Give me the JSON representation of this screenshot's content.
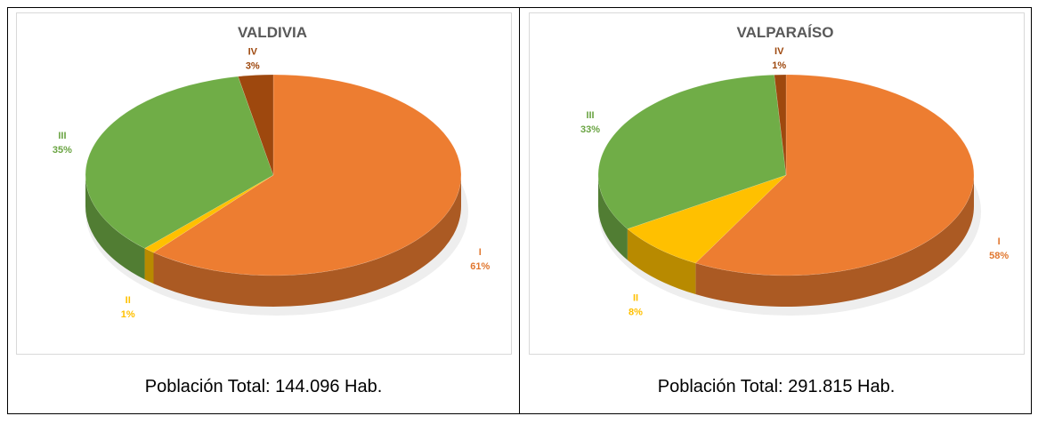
{
  "chart_data": [
    {
      "type": "pie",
      "title": "VALDIVIA",
      "categories": [
        "I",
        "II",
        "III",
        "IV"
      ],
      "values": [
        61,
        1,
        35,
        3
      ],
      "value_labels": [
        "61%",
        "1%",
        "35%",
        "3%"
      ],
      "colors": [
        "#ED7D31",
        "#FFC000",
        "#70AD47",
        "#9E480E"
      ],
      "caption": "Población Total: 144.096 Hab."
    },
    {
      "type": "pie",
      "title": "VALPARAÍSO",
      "categories": [
        "I",
        "II",
        "III",
        "IV"
      ],
      "values": [
        58,
        8,
        33,
        1
      ],
      "value_labels": [
        "58%",
        "8%",
        "33%",
        "1%"
      ],
      "colors": [
        "#ED7D31",
        "#FFC000",
        "#70AD47",
        "#9E480E"
      ],
      "caption": "Población Total: 291.815 Hab."
    }
  ]
}
